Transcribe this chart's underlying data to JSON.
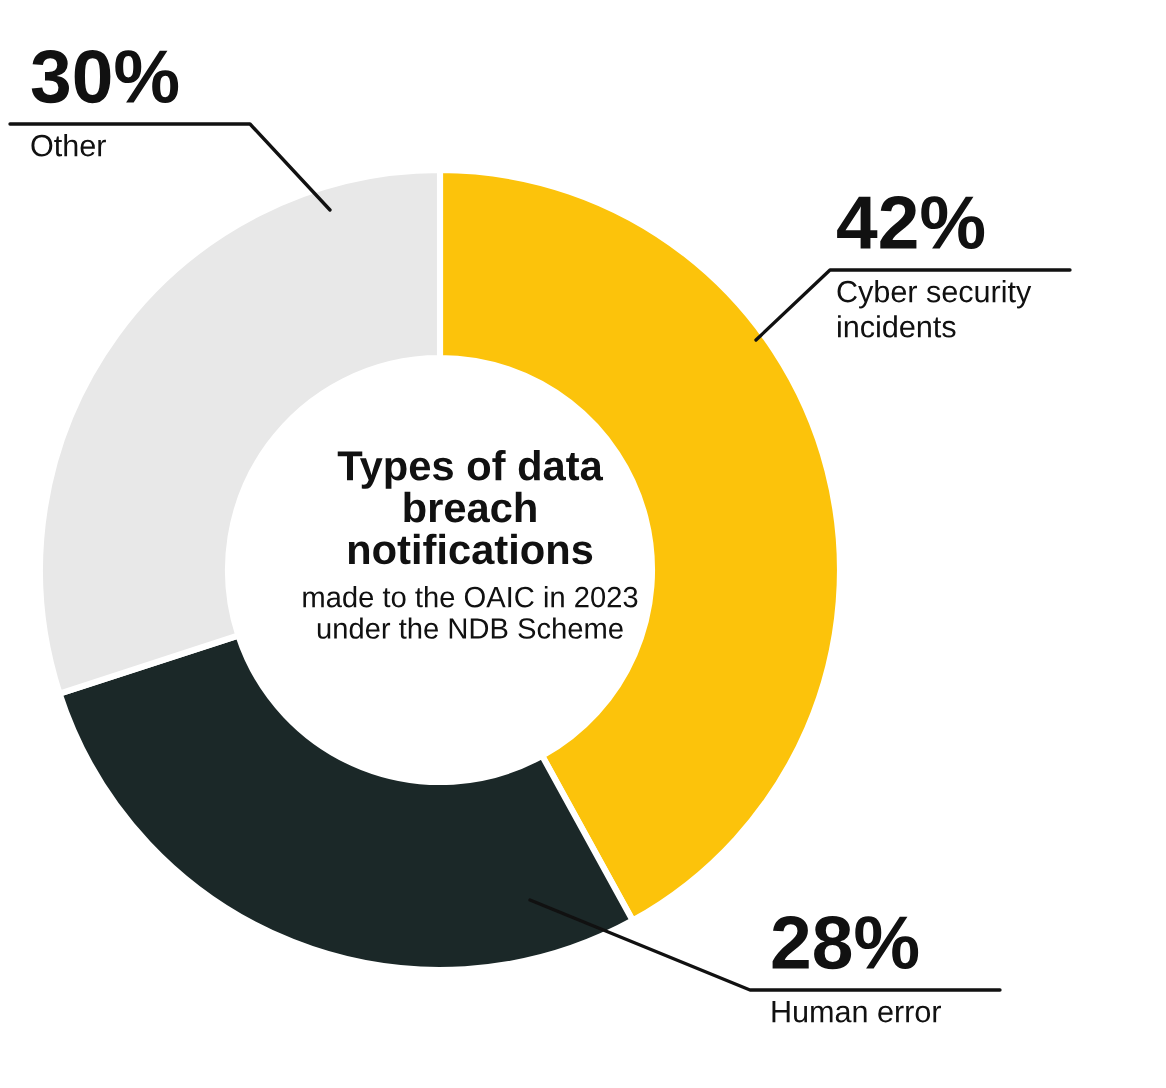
{
  "chart_data": {
    "type": "donut",
    "title": "Types of data breach notifications",
    "subtitle": "made to the OAIC in 2023 under the NDB Scheme",
    "categories": [
      "Cyber security incidents",
      "Human error",
      "Other"
    ],
    "values": [
      42,
      28,
      30
    ],
    "value_labels": [
      "42%",
      "28%",
      "30%"
    ],
    "colors": [
      "#fcc30b",
      "#1b2828",
      "#e8e8e8"
    ],
    "legend": false
  }
}
